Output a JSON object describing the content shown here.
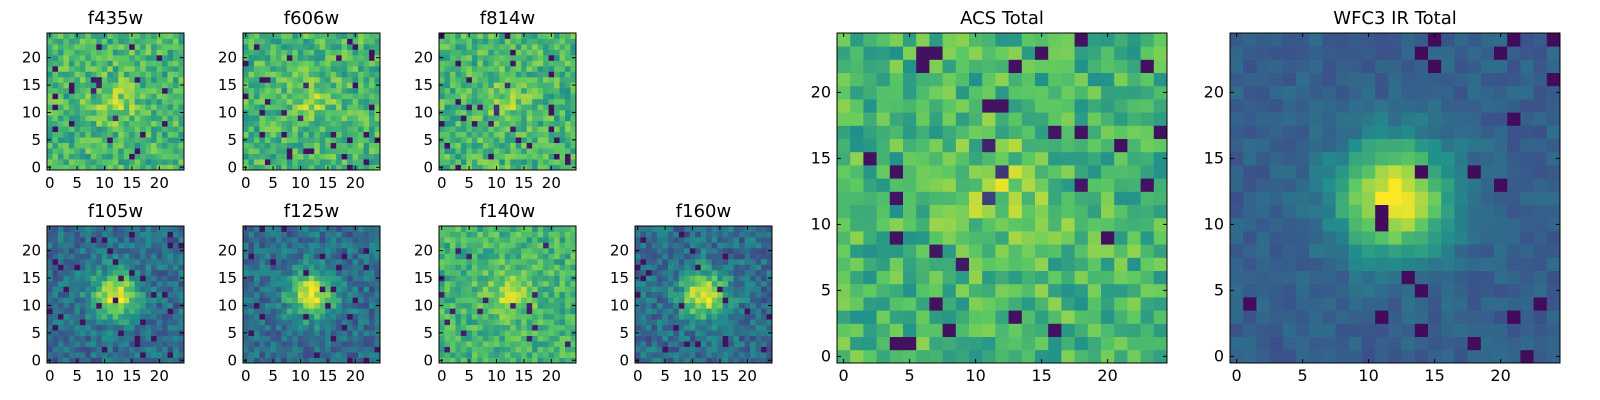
{
  "figure": {
    "colormap": [
      "#440154",
      "#3b528b",
      "#21918c",
      "#5ec962",
      "#fde725"
    ]
  },
  "chart_data": [
    {
      "type": "heatmap",
      "title": "f435w",
      "pattern": "noise",
      "xlim": [
        0,
        25
      ],
      "ylim": [
        0,
        25
      ],
      "xticks": [
        0,
        5,
        10,
        15,
        20
      ],
      "yticks": [
        0,
        5,
        10,
        15,
        20
      ],
      "seed": 3
    },
    {
      "type": "heatmap",
      "title": "f606w",
      "pattern": "noise",
      "xlim": [
        0,
        25
      ],
      "ylim": [
        0,
        25
      ],
      "xticks": [
        0,
        5,
        10,
        15,
        20
      ],
      "yticks": [
        0,
        5,
        10,
        15,
        20
      ],
      "seed": 7
    },
    {
      "type": "heatmap",
      "title": "f814w",
      "pattern": "noise",
      "xlim": [
        0,
        25
      ],
      "ylim": [
        0,
        25
      ],
      "xticks": [
        0,
        5,
        10,
        15,
        20
      ],
      "yticks": [
        0,
        5,
        10,
        15,
        20
      ],
      "seed": 11
    },
    {
      "type": "heatmap",
      "title": "f105w",
      "pattern": "source",
      "xlim": [
        0,
        25
      ],
      "ylim": [
        0,
        25
      ],
      "xticks": [
        0,
        5,
        10,
        15,
        20
      ],
      "yticks": [
        0,
        5,
        10,
        15,
        20
      ],
      "seed": 13
    },
    {
      "type": "heatmap",
      "title": "f125w",
      "pattern": "source",
      "xlim": [
        0,
        25
      ],
      "ylim": [
        0,
        25
      ],
      "xticks": [
        0,
        5,
        10,
        15,
        20
      ],
      "yticks": [
        0,
        5,
        10,
        15,
        20
      ],
      "seed": 17
    },
    {
      "type": "heatmap",
      "title": "f140w",
      "pattern": "bright",
      "xlim": [
        0,
        25
      ],
      "ylim": [
        0,
        25
      ],
      "xticks": [
        0,
        5,
        10,
        15,
        20
      ],
      "yticks": [
        0,
        5,
        10,
        15,
        20
      ],
      "seed": 19
    },
    {
      "type": "heatmap",
      "title": "f160w",
      "pattern": "source",
      "xlim": [
        0,
        25
      ],
      "ylim": [
        0,
        25
      ],
      "xticks": [
        0,
        5,
        10,
        15,
        20
      ],
      "yticks": [
        0,
        5,
        10,
        15,
        20
      ],
      "seed": 23
    },
    {
      "type": "heatmap",
      "title": "ACS Total",
      "pattern": "noise",
      "xlim": [
        0,
        25
      ],
      "ylim": [
        0,
        25
      ],
      "xticks": [
        0,
        5,
        10,
        15,
        20
      ],
      "yticks": [
        0,
        5,
        10,
        15,
        20
      ],
      "seed": 29
    },
    {
      "type": "heatmap",
      "title": "WFC3 IR Total",
      "pattern": "smooth",
      "xlim": [
        0,
        25
      ],
      "ylim": [
        0,
        25
      ],
      "xticks": [
        0,
        5,
        10,
        15,
        20
      ],
      "yticks": [
        0,
        5,
        10,
        15,
        20
      ],
      "seed": 31
    }
  ]
}
